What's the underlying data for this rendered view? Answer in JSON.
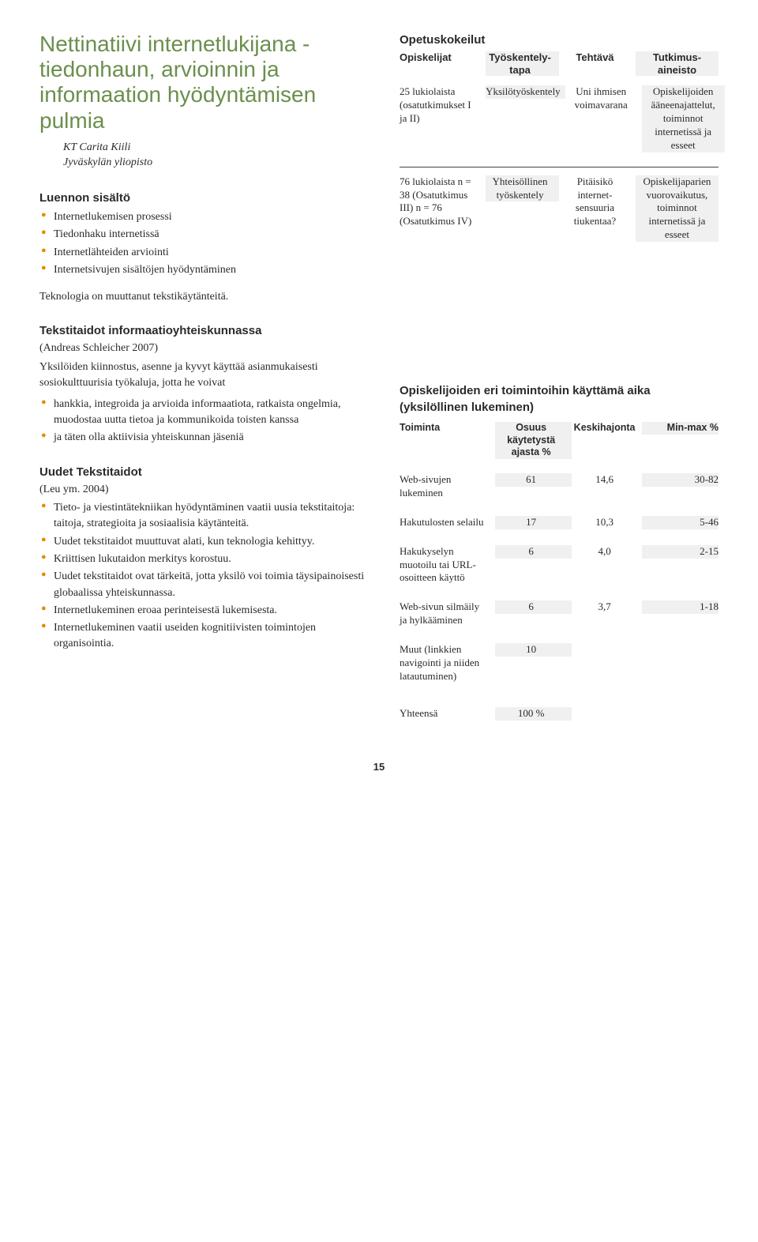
{
  "colors": {
    "title_color": "#6b8f4d",
    "bullet_color": "#e38b00",
    "text_color": "#2a2a2a",
    "stripe_bg": "#f0f0f0",
    "divider": "#444444",
    "background": "#ffffff"
  },
  "typography": {
    "title_fontsize": 28,
    "heading_fontsize": 15,
    "body_fontsize": 14,
    "table_fontsize": 13
  },
  "title": "Nettinatiivi internetlukijana - tiedonhaun, arvioinnin ja informaation hyödyntämisen pulmia",
  "author": {
    "name": "KT Carita Kiili",
    "affiliation": "Jyväskylän yliopisto"
  },
  "lecture": {
    "heading": "Luennon sisältö",
    "items": [
      "Internetlukemisen prosessi",
      "Tiedonhaku internetissä",
      "Internetlähteiden arviointi",
      "Internetsivujen sisältöjen hyödyntäminen"
    ]
  },
  "tech_line": "Teknologia on muuttanut tekstikäytänteitä.",
  "textskills": {
    "heading": "Tekstitaidot informaatioyhteiskunnassa",
    "ref": "(Andreas Schleicher 2007)",
    "intro": "Yksilöiden kiinnostus, asenne ja kyvyt käyttää asianmukaisesti sosiokulttuurisia työkaluja, jotta he voivat",
    "items": [
      "hankkia, integroida ja arvioida informaatiota, ratkaista ongelmia, muodostaa uutta tietoa ja kommunikoida toisten kanssa",
      "ja täten olla aktiivisia yhteiskunnan jäseniä"
    ]
  },
  "newskills": {
    "heading": "Uudet Tekstitaidot",
    "ref": "(Leu ym. 2004)",
    "items": [
      "Tieto- ja viestintätekniikan hyödyntäminen vaatii uusia tekstitaitoja: taitoja, strategioita ja sosiaalisia käytänteitä.",
      "Uudet tekstitaidot muuttuvat alati, kun teknologia kehittyy.",
      "Kriittisen lukutaidon merkitys korostuu.",
      "Uudet tekstitaidot ovat tärkeitä, jotta yksilö voi toimia täysipainoisesti globaalissa yhteiskunnassa.",
      "Internetlukeminen eroaa perinteisestä lukemisesta.",
      "Internetlukeminen vaatii useiden kognitiivisten toimintojen organisointia."
    ]
  },
  "experiments": {
    "heading": "Opetuskokeilut",
    "columns": [
      "Opiskelijat",
      "Työskentely-tapa",
      "Tehtävä",
      "Tutkimus-aineisto"
    ],
    "rows": [
      {
        "c1": "25 lukiolaista (osatutkimukset I ja II)",
        "c2": "Yksilötyöskentely",
        "c3": "Uni ihmisen voimavarana",
        "c4": "Opiskelijoiden ääneenajattelut, toiminnot internetissä ja esseet"
      },
      {
        "c1": "76 lukiolaista n = 38 (Osatutkimus III) n = 76 (Osatutkimus IV)",
        "c2": "Yhteisöllinen työskentely",
        "c3": "Pitäisikö internet-sensuuria tiukentaa?",
        "c4": "Opiskelijaparien vuorovaikutus, toiminnot internetissä ja esseet"
      }
    ]
  },
  "timeuse": {
    "heading": "Opiskelijoiden eri toimintoihin käyttämä aika (yksilöllinen lukeminen)",
    "columns": [
      "Toiminta",
      "Osuus käytetystä ajasta %",
      "Keskihajonta",
      "Min-max %"
    ],
    "rows": [
      {
        "c1": "Web-sivujen lukeminen",
        "c2": "61",
        "c3": "14,6",
        "c4": "30-82"
      },
      {
        "c1": "Hakutulosten selailu",
        "c2": "17",
        "c3": "10,3",
        "c4": "5-46"
      },
      {
        "c1": "Hakukyselyn muotoilu tai URL-osoitteen käyttö",
        "c2": "6",
        "c3": "4,0",
        "c4": "2-15"
      },
      {
        "c1": "Web-sivun silmäily ja hylkääminen",
        "c2": "6",
        "c3": "3,7",
        "c4": "1-18"
      },
      {
        "c1": "Muut (linkkien navigointi ja niiden latautuminen)",
        "c2": "10",
        "c3": "",
        "c4": ""
      },
      {
        "c1": "Yhteensä",
        "c2": "100 %",
        "c3": "",
        "c4": ""
      }
    ]
  },
  "page_number": "15"
}
